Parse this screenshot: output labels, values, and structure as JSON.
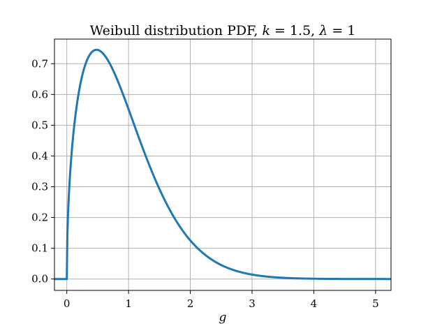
{
  "chart_data": {
    "type": "line",
    "title_plain": "Weibull distribution PDF, ",
    "title_k": "k",
    "title_k_value": " = 1.5, ",
    "title_lambda": "λ",
    "title_lambda_value": " = 1",
    "xlabel": "g",
    "ylabel": "",
    "xlim": [
      -0.2,
      5.25
    ],
    "ylim": [
      -0.037,
      0.78
    ],
    "xticks": [
      0,
      1,
      2,
      3,
      4,
      5
    ],
    "yticks": [
      0.0,
      0.1,
      0.2,
      0.3,
      0.4,
      0.5,
      0.6,
      0.7
    ],
    "ytick_labels": [
      "0.0",
      "0.1",
      "0.2",
      "0.3",
      "0.4",
      "0.5",
      "0.6",
      "0.7"
    ],
    "xtick_labels": [
      "0",
      "1",
      "2",
      "3",
      "4",
      "5"
    ],
    "grid": true,
    "series": [
      {
        "distribution": "weibull",
        "k": 1.5,
        "lambda": 1,
        "color": "#1f77b4",
        "x_range": [
          -0.2,
          5.25
        ]
      }
    ]
  }
}
